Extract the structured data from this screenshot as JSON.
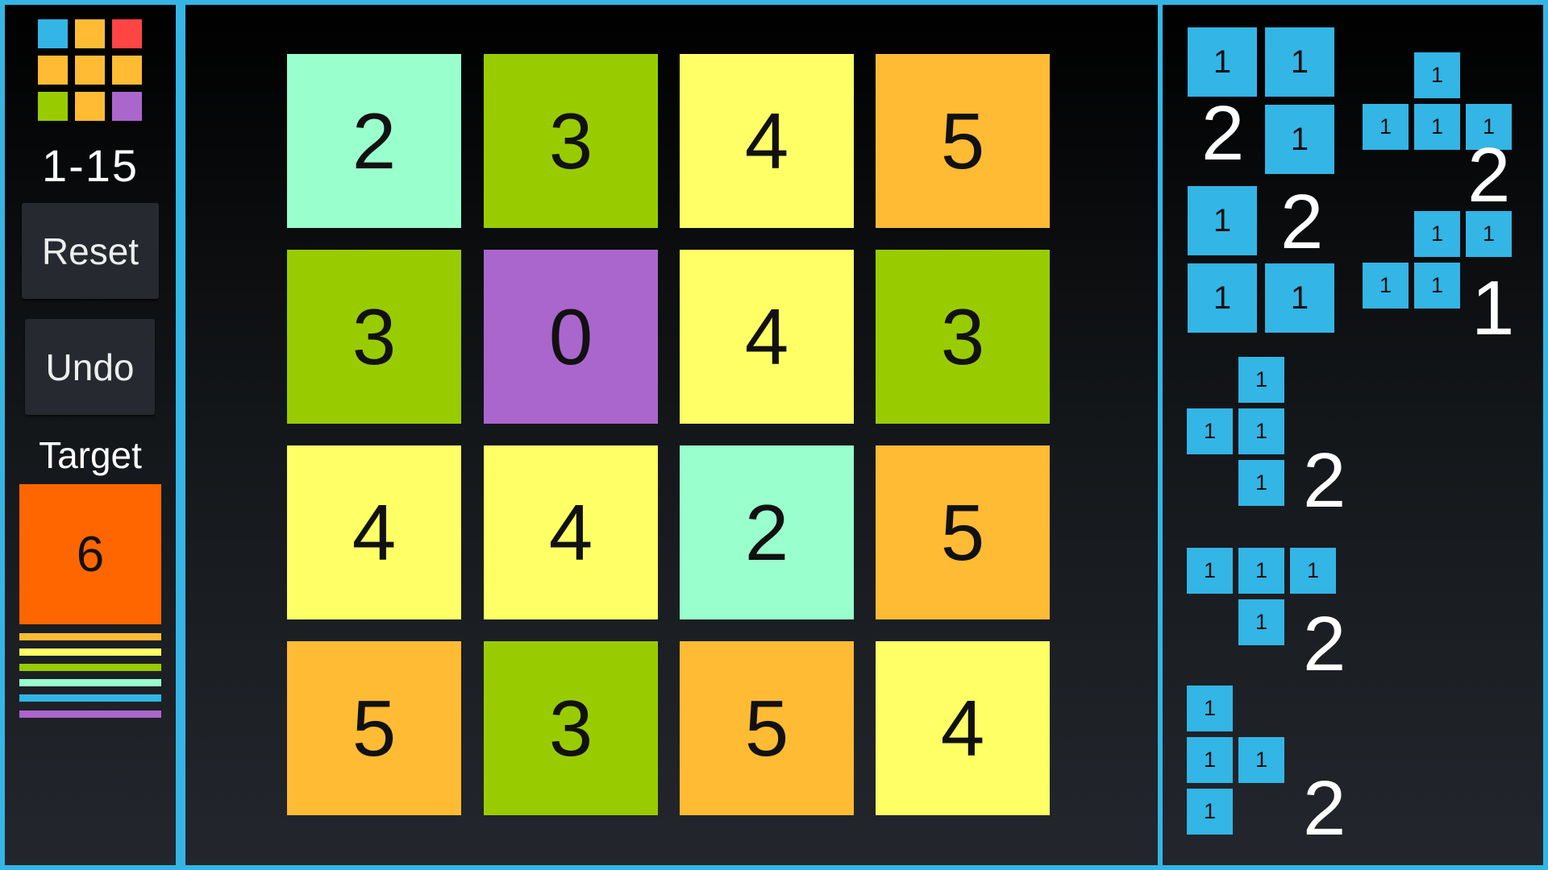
{
  "colors": {
    "border": "#35b5e5",
    "target": "#ff6600",
    "piece": "#33b5e5",
    "value_colors": {
      "0": "#aa66cc",
      "1": "#33b5e5",
      "2": "#99ffcc",
      "3": "#99cc00",
      "4": "#ffff66",
      "5": "#ffbb33"
    }
  },
  "sidebar": {
    "logo_icon": "grid-of-colored-squares",
    "logo_colors": [
      "#33b5e5",
      "#ffbb33",
      "#ff4444",
      "#ffbb33",
      "#ffbb33",
      "#ffbb33",
      "#99cc00",
      "#ffbb33",
      "#aa66cc"
    ],
    "level": "1-15",
    "reset_label": "Reset",
    "undo_label": "Undo",
    "target_label": "Target",
    "target_value": "6",
    "legend_stripes": [
      "#ffbb33",
      "#ffff66",
      "#99cc00",
      "#99ffcc",
      "#33b5e5",
      "#aa66cc"
    ]
  },
  "board": [
    [
      "2",
      "3",
      "4",
      "5"
    ],
    [
      "3",
      "0",
      "4",
      "3"
    ],
    [
      "4",
      "4",
      "2",
      "5"
    ],
    [
      "5",
      "3",
      "5",
      "4"
    ]
  ],
  "pieces": [
    {
      "shape": [
        "11",
        "01"
      ],
      "cell_value": "1",
      "count": "2"
    },
    {
      "shape": [
        "010",
        "111"
      ],
      "cell_value": "1",
      "count": "2"
    },
    {
      "shape": [
        "10",
        "11"
      ],
      "cell_value": "1",
      "count": "2"
    },
    {
      "shape": [
        "011",
        "110"
      ],
      "cell_value": "1",
      "count": "1"
    },
    {
      "shape": [
        "01",
        "11",
        "01"
      ],
      "cell_value": "1",
      "count": "2"
    },
    {
      "shape": [
        "111",
        "010"
      ],
      "cell_value": "1",
      "count": "2"
    },
    {
      "shape": [
        "10",
        "11",
        "10"
      ],
      "cell_value": "1",
      "count": "2"
    }
  ]
}
